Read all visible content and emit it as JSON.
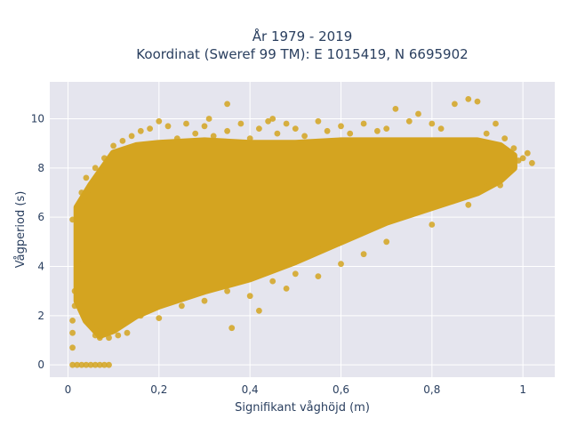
{
  "chart_data": {
    "type": "scatter",
    "title_line1": "År 1979 - 2019",
    "title_line2": "Koordinat (Sweref 99 TM): E 1015419, N 6695902",
    "xlabel": "Signifikant våghöjd (m)",
    "ylabel": "Vågperiod (s)",
    "xlim": [
      -0.04,
      1.07
    ],
    "ylim": [
      -0.5,
      11.5
    ],
    "x_ticks": [
      0,
      0.2,
      0.4,
      0.6,
      0.8,
      1
    ],
    "x_tick_labels": [
      "0",
      "0,2",
      "0,4",
      "0,6",
      "0,8",
      "1"
    ],
    "y_ticks": [
      0,
      2,
      4,
      6,
      8,
      10
    ],
    "y_tick_labels": [
      "0",
      "2",
      "4",
      "6",
      "8",
      "10"
    ],
    "grid": true,
    "marker_color": "#D4A420",
    "plot_bg_color": "#E5E5EE",
    "dense_region": {
      "upper_boundary": [
        [
          0.02,
          6.4
        ],
        [
          0.05,
          7.3
        ],
        [
          0.1,
          8.6
        ],
        [
          0.15,
          8.9
        ],
        [
          0.2,
          9.0
        ],
        [
          0.3,
          9.1
        ],
        [
          0.4,
          9.0
        ],
        [
          0.5,
          9.0
        ],
        [
          0.6,
          9.1
        ],
        [
          0.7,
          9.1
        ],
        [
          0.8,
          9.1
        ],
        [
          0.9,
          9.1
        ],
        [
          0.95,
          8.9
        ],
        [
          0.98,
          8.5
        ]
      ],
      "lower_boundary": [
        [
          0.98,
          8.0
        ],
        [
          0.95,
          7.5
        ],
        [
          0.9,
          7.0
        ],
        [
          0.8,
          6.4
        ],
        [
          0.7,
          5.8
        ],
        [
          0.6,
          5.0
        ],
        [
          0.5,
          4.2
        ],
        [
          0.4,
          3.5
        ],
        [
          0.3,
          3.0
        ],
        [
          0.2,
          2.4
        ],
        [
          0.15,
          2.0
        ],
        [
          0.1,
          1.4
        ],
        [
          0.07,
          1.2
        ],
        [
          0.04,
          1.8
        ],
        [
          0.02,
          2.6
        ]
      ]
    },
    "points": [
      [
        0.01,
        0.0
      ],
      [
        0.02,
        0.0
      ],
      [
        0.03,
        0.0
      ],
      [
        0.04,
        0.0
      ],
      [
        0.05,
        0.0
      ],
      [
        0.06,
        0.0
      ],
      [
        0.07,
        0.0
      ],
      [
        0.08,
        0.0
      ],
      [
        0.09,
        0.0
      ],
      [
        0.01,
        0.7
      ],
      [
        0.01,
        1.3
      ],
      [
        0.01,
        1.8
      ],
      [
        0.015,
        2.4
      ],
      [
        0.015,
        3.0
      ],
      [
        0.01,
        5.9
      ],
      [
        0.02,
        4.2
      ],
      [
        0.03,
        7.0
      ],
      [
        0.04,
        7.6
      ],
      [
        0.06,
        8.0
      ],
      [
        0.08,
        8.4
      ],
      [
        0.1,
        8.9
      ],
      [
        0.12,
        9.1
      ],
      [
        0.14,
        9.3
      ],
      [
        0.16,
        9.5
      ],
      [
        0.18,
        9.6
      ],
      [
        0.2,
        9.9
      ],
      [
        0.22,
        9.7
      ],
      [
        0.24,
        9.2
      ],
      [
        0.26,
        9.8
      ],
      [
        0.28,
        9.4
      ],
      [
        0.3,
        9.7
      ],
      [
        0.31,
        10.0
      ],
      [
        0.32,
        9.3
      ],
      [
        0.35,
        9.5
      ],
      [
        0.35,
        10.6
      ],
      [
        0.38,
        9.8
      ],
      [
        0.4,
        9.2
      ],
      [
        0.42,
        9.6
      ],
      [
        0.44,
        9.9
      ],
      [
        0.45,
        10.0
      ],
      [
        0.46,
        9.4
      ],
      [
        0.48,
        9.8
      ],
      [
        0.5,
        9.6
      ],
      [
        0.52,
        9.3
      ],
      [
        0.55,
        9.9
      ],
      [
        0.57,
        9.5
      ],
      [
        0.6,
        9.7
      ],
      [
        0.62,
        9.4
      ],
      [
        0.65,
        9.8
      ],
      [
        0.68,
        9.5
      ],
      [
        0.7,
        9.6
      ],
      [
        0.72,
        10.4
      ],
      [
        0.75,
        9.9
      ],
      [
        0.77,
        10.2
      ],
      [
        0.8,
        9.8
      ],
      [
        0.82,
        9.6
      ],
      [
        0.85,
        10.6
      ],
      [
        0.88,
        10.8
      ],
      [
        0.9,
        10.7
      ],
      [
        0.92,
        9.4
      ],
      [
        0.94,
        9.8
      ],
      [
        0.96,
        9.2
      ],
      [
        0.98,
        8.8
      ],
      [
        1.0,
        8.4
      ],
      [
        1.01,
        8.6
      ],
      [
        1.02,
        8.2
      ],
      [
        0.99,
        8.3
      ],
      [
        0.16,
        2.0
      ],
      [
        0.2,
        1.9
      ],
      [
        0.25,
        2.4
      ],
      [
        0.3,
        2.6
      ],
      [
        0.35,
        3.0
      ],
      [
        0.4,
        2.8
      ],
      [
        0.45,
        3.4
      ],
      [
        0.5,
        3.7
      ],
      [
        0.55,
        3.6
      ],
      [
        0.6,
        4.1
      ],
      [
        0.65,
        4.5
      ],
      [
        0.7,
        5.0
      ],
      [
        0.8,
        5.7
      ],
      [
        0.88,
        6.5
      ],
      [
        0.95,
        7.3
      ],
      [
        0.36,
        1.5
      ],
      [
        0.42,
        2.2
      ],
      [
        0.48,
        3.1
      ],
      [
        0.07,
        1.1
      ],
      [
        0.09,
        1.1
      ],
      [
        0.11,
        1.2
      ],
      [
        0.13,
        1.3
      ],
      [
        0.06,
        1.2
      ]
    ]
  }
}
